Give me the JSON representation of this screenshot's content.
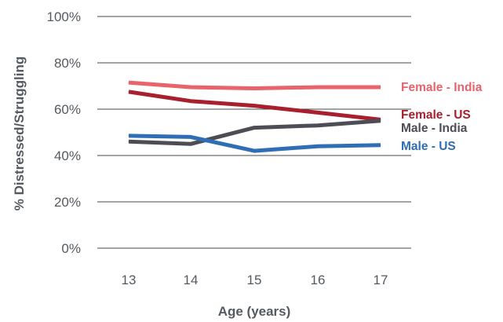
{
  "chart_data": {
    "type": "line",
    "title": "",
    "xlabel": "Age (years)",
    "ylabel": "% Distressed/Struggling",
    "x": [
      13,
      14,
      15,
      16,
      17
    ],
    "x_tick_labels": [
      "13",
      "14",
      "15",
      "16",
      "17"
    ],
    "ylim": [
      0,
      100
    ],
    "y_ticks": [
      0,
      20,
      40,
      60,
      80,
      100
    ],
    "y_tick_labels": [
      "0%",
      "20%",
      "40%",
      "60%",
      "80%",
      "100%"
    ],
    "grid": "horizontal",
    "legend": "direct labels at right end of lines",
    "series": [
      {
        "name": "Female - India",
        "color": "#e8636b",
        "values": [
          71.5,
          69.5,
          69.0,
          69.5,
          69.5
        ]
      },
      {
        "name": "Female - US",
        "color": "#a8202d",
        "values": [
          67.5,
          63.5,
          61.5,
          58.5,
          55.5
        ]
      },
      {
        "name": "Male - India",
        "color": "#4d4d55",
        "values": [
          46.0,
          45.0,
          52.0,
          53.0,
          55.0
        ]
      },
      {
        "name": "Male - US",
        "color": "#2f6eb5",
        "values": [
          48.5,
          48.0,
          42.0,
          44.0,
          44.5
        ]
      }
    ]
  }
}
